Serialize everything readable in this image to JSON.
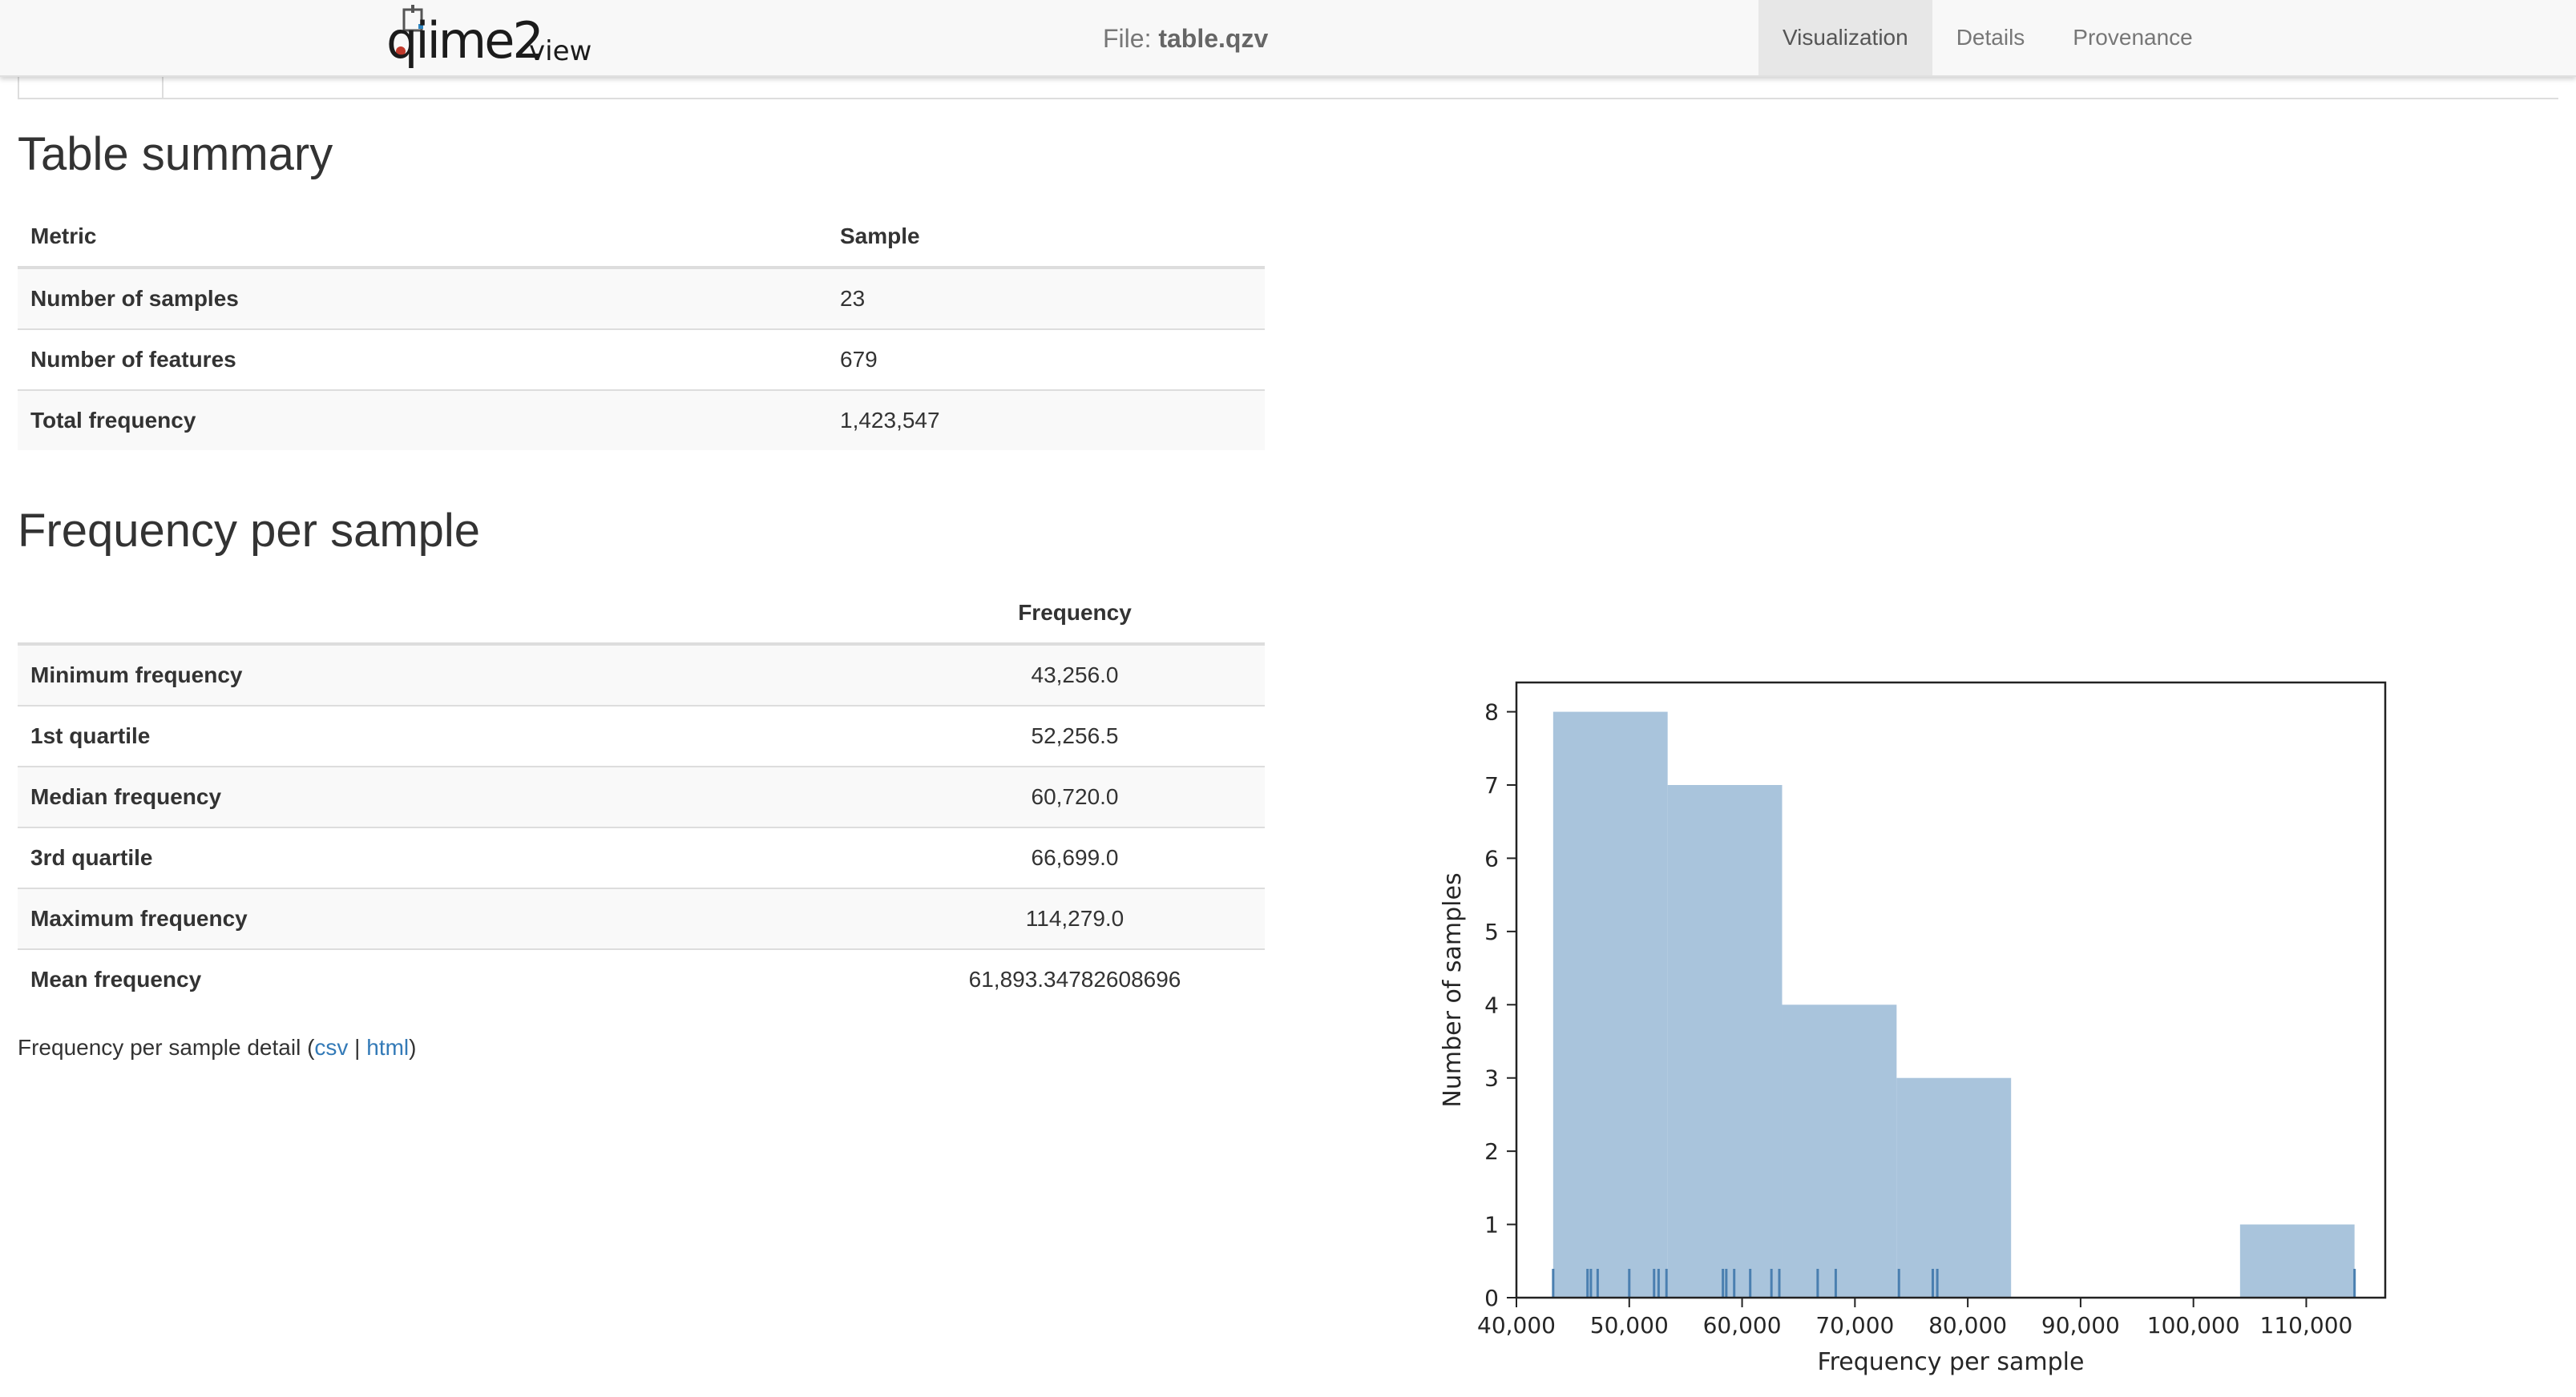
{
  "header": {
    "logo_main": "qiime2",
    "logo_sub": "view",
    "file_prefix": "File: ",
    "file_name": "table.qzv",
    "tabs": [
      {
        "label": "Visualization",
        "active": true
      },
      {
        "label": "Details",
        "active": false
      },
      {
        "label": "Provenance",
        "active": false
      }
    ]
  },
  "summary": {
    "title": "Table summary",
    "columns": [
      "Metric",
      "Sample"
    ],
    "rows": [
      {
        "metric": "Number of samples",
        "value": "23"
      },
      {
        "metric": "Number of features",
        "value": "679"
      },
      {
        "metric": "Total frequency",
        "value": "1,423,547"
      }
    ]
  },
  "frequency": {
    "title": "Frequency per sample",
    "columns": [
      "",
      "Frequency"
    ],
    "rows": [
      {
        "metric": "Minimum frequency",
        "value": "43,256.0"
      },
      {
        "metric": "1st quartile",
        "value": "52,256.5"
      },
      {
        "metric": "Median frequency",
        "value": "60,720.0"
      },
      {
        "metric": "3rd quartile",
        "value": "66,699.0"
      },
      {
        "metric": "Maximum frequency",
        "value": "114,279.0"
      },
      {
        "metric": "Mean frequency",
        "value": "61,893.34782608696"
      }
    ],
    "detail_prefix": "Frequency per sample detail (",
    "detail_csv": "csv",
    "detail_sep": " | ",
    "detail_html": "html",
    "detail_suffix": ")"
  },
  "chart_data": {
    "type": "bar",
    "title": "",
    "xlabel": "Frequency per sample",
    "ylabel": "Number of samples",
    "xlim": [
      40000,
      117000
    ],
    "ylim": [
      0,
      8.4
    ],
    "bin_edges": [
      43256,
      53402,
      63548,
      73694,
      83840,
      93986,
      104132,
      114279
    ],
    "values": [
      8,
      7,
      4,
      3,
      0,
      0,
      1
    ],
    "x_ticks": [
      40000,
      50000,
      60000,
      70000,
      80000,
      90000,
      100000,
      110000
    ],
    "x_tick_labels": [
      "40,000",
      "50,000",
      "60,000",
      "70,000",
      "80,000",
      "90,000",
      "100,000",
      "110,000"
    ],
    "y_ticks": [
      0,
      1,
      2,
      3,
      4,
      5,
      6,
      7,
      8
    ],
    "y_tick_labels": [
      "0",
      "1",
      "2",
      "3",
      "4",
      "5",
      "6",
      "7",
      "8"
    ],
    "rug": [
      43256,
      46300,
      46600,
      47200,
      50000,
      52200,
      52600,
      53300,
      58300,
      58600,
      59300,
      60720,
      62600,
      63300,
      66699,
      68300,
      73900,
      76900,
      77300,
      114279
    ],
    "bar_color": "#a9c4dc",
    "rug_color": "#4a7fb0",
    "grid": false,
    "legend": "none"
  }
}
